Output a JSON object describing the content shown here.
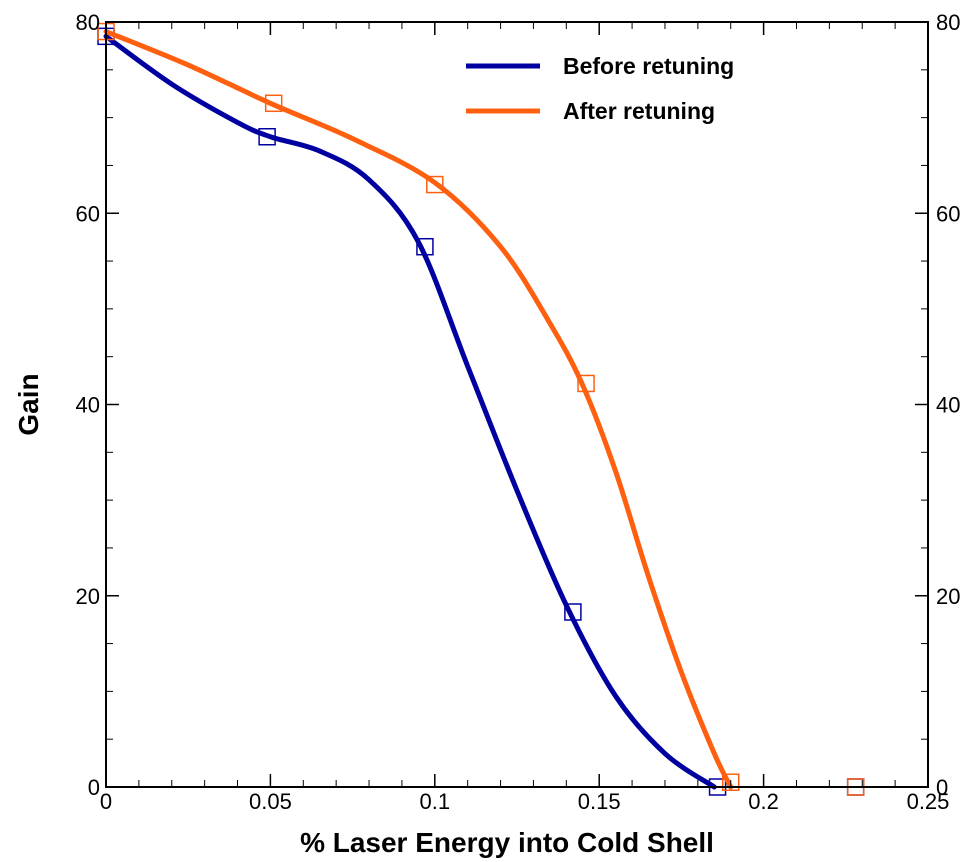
{
  "chart_data": {
    "type": "line",
    "title": "",
    "xlabel": "% Laser Energy into Cold Shell",
    "ylabel": "Gain",
    "xlim": [
      0,
      0.25
    ],
    "ylim": [
      0,
      80
    ],
    "x_ticks": [
      0,
      0.05,
      0.1,
      0.15,
      0.2,
      0.25
    ],
    "x_tick_labels": [
      "0",
      "0.05",
      "0.1",
      "0.15",
      "0.2",
      "0.25"
    ],
    "y_ticks": [
      0,
      20,
      40,
      60,
      80
    ],
    "y_tick_labels": [
      "0",
      "20",
      "40",
      "60",
      "80"
    ],
    "right_axis_mirrored": true,
    "grid": false,
    "legend_position": "top-right",
    "series": [
      {
        "name": "Before retuning",
        "color": "#0000a0",
        "marker": "square",
        "x": [
          0.0,
          0.02,
          0.04,
          0.05,
          0.065,
          0.08,
          0.095,
          0.11,
          0.125,
          0.14,
          0.155,
          0.17,
          0.185
        ],
        "y": [
          78.5,
          73.5,
          69.5,
          68.0,
          66.5,
          63.5,
          57.0,
          44.0,
          31.0,
          19.0,
          9.5,
          3.5,
          0.0
        ],
        "marker_x": [
          0.0,
          0.049,
          0.097,
          0.142,
          0.186,
          0.228
        ],
        "marker_y": [
          78.5,
          68.0,
          56.5,
          18.3,
          0.0,
          0.0
        ]
      },
      {
        "name": "After retuning",
        "color": "#ff6010",
        "marker": "square",
        "x": [
          0.0,
          0.025,
          0.05,
          0.075,
          0.1,
          0.12,
          0.135,
          0.145,
          0.155,
          0.165,
          0.175,
          0.185,
          0.19
        ],
        "y": [
          79.0,
          75.5,
          71.5,
          67.8,
          63.2,
          56.5,
          48.5,
          42.0,
          33.0,
          22.0,
          12.0,
          3.5,
          0.0
        ],
        "marker_x": [
          0.0,
          0.051,
          0.1,
          0.146,
          0.19,
          0.228
        ],
        "marker_y": [
          79.0,
          71.5,
          63.0,
          42.2,
          0.5,
          0.0
        ]
      }
    ]
  }
}
